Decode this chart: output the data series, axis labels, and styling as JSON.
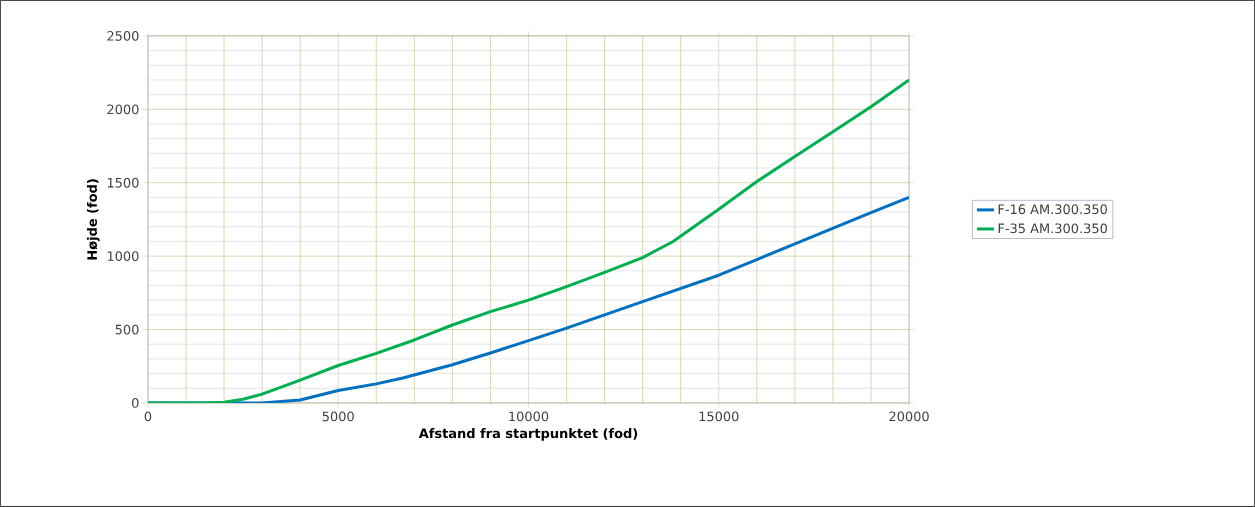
{
  "chart_data": {
    "type": "line",
    "xlabel": "Afstand fra startpunktet (fod)",
    "ylabel": "Højde (fod)",
    "xlim": [
      0,
      20000
    ],
    "ylim": [
      0,
      2500
    ],
    "xticks": [
      0,
      5000,
      10000,
      15000,
      20000
    ],
    "yticks": [
      0,
      500,
      1000,
      1500,
      2000,
      2500
    ],
    "grid": true,
    "legend": "right",
    "marker": "none",
    "line_style": "solid",
    "series": [
      {
        "name": "F-16 AM.300.350",
        "color": "#0070c0",
        "x": [
          0,
          2000,
          3000,
          4000,
          5000,
          6000,
          6700,
          8000,
          9000,
          10000,
          11000,
          12000,
          13000,
          14000,
          15000,
          16000,
          17000,
          18000,
          19000,
          20000
        ],
        "values": [
          0,
          0,
          0,
          20,
          85,
          130,
          170,
          260,
          340,
          425,
          510,
          600,
          690,
          780,
          870,
          977,
          1083,
          1190,
          1297,
          1400
        ]
      },
      {
        "name": "F-35 AM.300.350",
        "color": "#00b050",
        "x": [
          0,
          1500,
          2000,
          2500,
          3000,
          4000,
          5000,
          6000,
          7000,
          8000,
          9000,
          10000,
          11000,
          12000,
          13000,
          13800,
          15000,
          16000,
          17000,
          18000,
          19000,
          20000
        ],
        "values": [
          0,
          0,
          5,
          25,
          60,
          155,
          255,
          338,
          429,
          531,
          622,
          700,
          792,
          890,
          990,
          1100,
          1320,
          1508,
          1678,
          1848,
          2018,
          2200
        ]
      }
    ]
  }
}
